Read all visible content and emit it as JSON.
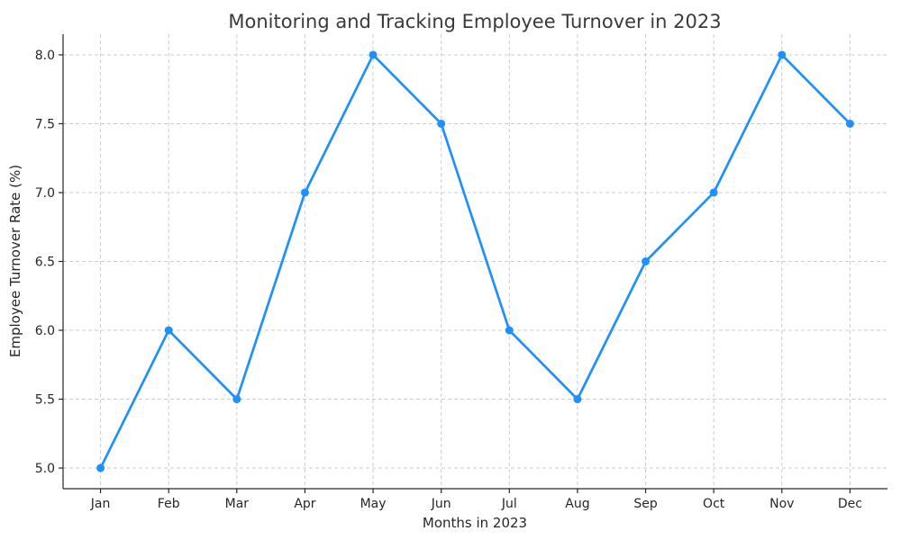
{
  "figure": {
    "title": "Monitoring and Tracking Employee Turnover in 2023",
    "xlabel": "Months in 2023",
    "ylabel": "Employee Turnover Rate (%)"
  },
  "chart_data": {
    "type": "line",
    "title": "Monitoring and Tracking Employee Turnover in 2023",
    "xlabel": "Months in 2023",
    "ylabel": "Employee Turnover Rate (%)",
    "categories": [
      "Jan",
      "Feb",
      "Mar",
      "Apr",
      "May",
      "Jun",
      "Jul",
      "Aug",
      "Sep",
      "Oct",
      "Nov",
      "Dec"
    ],
    "series": [
      {
        "name": "Employee Turnover Rate (%)",
        "values": [
          5.0,
          6.0,
          5.5,
          7.0,
          8.0,
          7.5,
          6.0,
          5.5,
          6.5,
          7.0,
          8.0,
          7.5
        ]
      }
    ],
    "ylim": [
      4.85,
      8.15
    ],
    "yticks": [
      5.0,
      5.5,
      6.0,
      6.5,
      7.0,
      7.5,
      8.0
    ],
    "grid": "dashed-both-axes",
    "legend": "none",
    "line_color": "#1E90FF",
    "marker": "circle",
    "grid_color": "#cccccc",
    "axis_color": "#262626",
    "title_color": "#3a3a3a",
    "background_color": "#ffffff"
  }
}
